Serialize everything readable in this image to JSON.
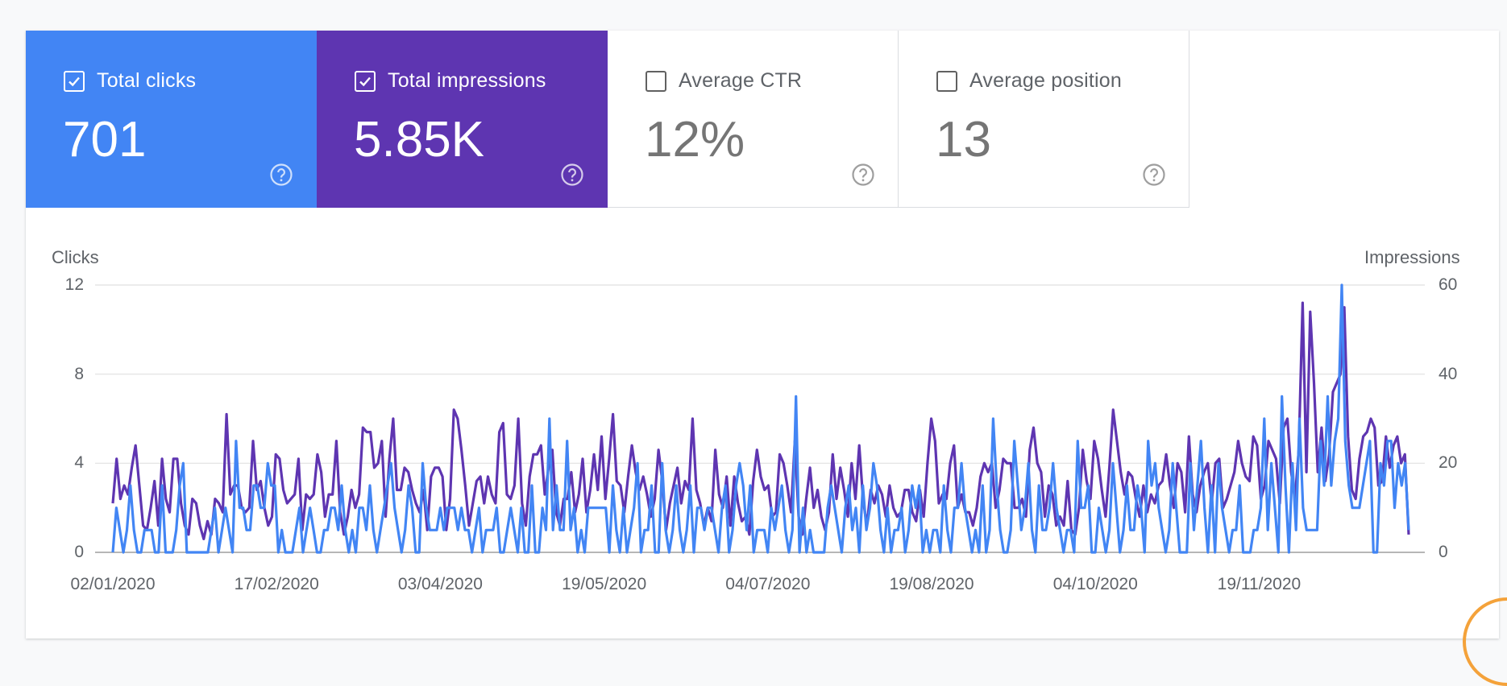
{
  "metrics": [
    {
      "label": "Total clicks",
      "value": "701",
      "checked": true
    },
    {
      "label": "Total impressions",
      "value": "5.85K",
      "checked": true
    },
    {
      "label": "Average CTR",
      "value": "12%",
      "checked": false
    },
    {
      "label": "Average position",
      "value": "13",
      "checked": false
    }
  ],
  "colors": {
    "clicks": "#4285f4",
    "impressions": "#5e35b1",
    "grid": "#e0e0e0"
  },
  "chart_data": {
    "type": "line",
    "ylabel_left": "Clicks",
    "ylabel_right": "Impressions",
    "left_ticks": [
      "0",
      "4",
      "8",
      "12"
    ],
    "right_ticks": [
      "0",
      "20",
      "40",
      "60"
    ],
    "ylim_left": [
      0,
      12
    ],
    "ylim_right": [
      0,
      60
    ],
    "grid": true,
    "x_tick_labels": [
      "02/01/2020",
      "17/02/2020",
      "03/04/2020",
      "19/05/2020",
      "04/07/2020",
      "19/08/2020",
      "04/10/2020",
      "19/11/2020"
    ],
    "x_start": "2020-01-02",
    "x_end": "2020-12-31",
    "series": [
      {
        "name": "Impressions",
        "axis": "right",
        "values": [
          11,
          21,
          12,
          15,
          13,
          19,
          24,
          15,
          6,
          5,
          10,
          16,
          6,
          21,
          12,
          9,
          21,
          21,
          11,
          6,
          4,
          12,
          11,
          6,
          3,
          7,
          4,
          12,
          11,
          9,
          31,
          13,
          15,
          15,
          10,
          9,
          10,
          25,
          14,
          16,
          10,
          6,
          8,
          22,
          21,
          14,
          11,
          12,
          13,
          21,
          5,
          13,
          12,
          13,
          22,
          18,
          8,
          13,
          13,
          25,
          9,
          4,
          8,
          14,
          10,
          13,
          28,
          27,
          27,
          19,
          20,
          25,
          8,
          21,
          30,
          14,
          14,
          19,
          18,
          14,
          11,
          9,
          14,
          5,
          17,
          19,
          19,
          17,
          5,
          12,
          32,
          30,
          23,
          15,
          6,
          11,
          16,
          17,
          11,
          17,
          13,
          11,
          27,
          29,
          13,
          12,
          15,
          30,
          11,
          6,
          17,
          22,
          22,
          24,
          13,
          19,
          23,
          9,
          6,
          12,
          12,
          18,
          9,
          13,
          21,
          9,
          14,
          22,
          14,
          26,
          12,
          21,
          31,
          16,
          15,
          9,
          17,
          24,
          18,
          14,
          17,
          13,
          8,
          12,
          23,
          16,
          5,
          11,
          15,
          19,
          11,
          16,
          14,
          30,
          14,
          11,
          6,
          10,
          7,
          23,
          13,
          10,
          17,
          6,
          17,
          11,
          7,
          8,
          4,
          16,
          23,
          17,
          14,
          15,
          8,
          9,
          22,
          20,
          15,
          9,
          25,
          8,
          4,
          12,
          19,
          10,
          14,
          8,
          5,
          9,
          22,
          12,
          19,
          14,
          8,
          20,
          12,
          24,
          12,
          6,
          14,
          11,
          15,
          13,
          8,
          15,
          10,
          8,
          9,
          14,
          14,
          9,
          7,
          14,
          8,
          20,
          30,
          25,
          11,
          13,
          12,
          20,
          24,
          10,
          13,
          9,
          9,
          6,
          10,
          17,
          20,
          18,
          20,
          10,
          14,
          21,
          20,
          20,
          10,
          10,
          12,
          8,
          23,
          28,
          20,
          18,
          8,
          15,
          13,
          6,
          8,
          6,
          16,
          5,
          4,
          10,
          23,
          16,
          12,
          25,
          21,
          14,
          8,
          19,
          32,
          25,
          18,
          13,
          18,
          17,
          12,
          8,
          15,
          9,
          13,
          11,
          15,
          16,
          22,
          15,
          10,
          20,
          18,
          9,
          26,
          13,
          9,
          15,
          18,
          20,
          11,
          20,
          21,
          10,
          12,
          15,
          18,
          25,
          20,
          17,
          16,
          26,
          24,
          12,
          15,
          25,
          23,
          21,
          11,
          28,
          30,
          18,
          12,
          23,
          56,
          18,
          54,
          38,
          18,
          28,
          16,
          22,
          36,
          38,
          40,
          55,
          26,
          14,
          12,
          21,
          26,
          27,
          30,
          28,
          15,
          16,
          26,
          19,
          24,
          26,
          20,
          22,
          4
        ]
      },
      {
        "name": "Clicks",
        "axis": "left",
        "values": [
          0,
          2,
          1,
          0,
          1,
          3,
          1,
          0,
          0,
          1,
          1,
          1,
          0,
          0,
          3,
          0,
          0,
          0,
          1,
          3,
          4,
          0,
          0,
          0,
          0,
          0,
          0,
          0,
          1,
          2,
          0,
          1,
          2,
          1,
          0,
          5,
          2,
          2,
          1,
          1,
          3,
          3,
          2,
          2,
          4,
          3,
          3,
          0,
          1,
          0,
          0,
          0,
          1,
          2,
          0,
          1,
          2,
          1,
          0,
          0,
          1,
          1,
          2,
          2,
          1,
          3,
          1,
          0,
          1,
          0,
          2,
          2,
          1,
          3,
          1,
          0,
          1,
          2,
          3,
          4,
          2,
          1,
          0,
          1,
          3,
          2,
          0,
          0,
          4,
          2,
          1,
          1,
          1,
          2,
          1,
          2,
          2,
          2,
          1,
          2,
          1,
          1,
          0,
          1,
          2,
          0,
          1,
          1,
          1,
          2,
          0,
          0,
          1,
          2,
          1,
          0,
          2,
          0,
          0,
          3,
          0,
          0,
          2,
          1,
          6,
          1,
          3,
          1,
          1,
          5,
          1,
          2,
          0,
          1,
          0,
          2,
          2,
          2,
          2,
          2,
          2,
          0,
          3,
          1,
          0,
          2,
          0,
          1,
          2,
          4,
          0,
          1,
          1,
          3,
          0,
          0,
          4,
          1,
          0,
          1,
          3,
          1,
          0,
          1,
          3,
          0,
          2,
          2,
          1,
          2,
          2,
          1,
          0,
          2,
          3,
          0,
          1,
          3,
          4,
          3,
          1,
          3,
          0,
          1,
          1,
          1,
          0,
          2,
          1,
          2,
          3,
          1,
          0,
          1,
          7,
          0,
          2,
          0,
          1,
          0,
          0,
          0,
          0,
          2,
          3,
          2,
          1,
          0,
          2,
          3,
          1,
          2,
          0,
          3,
          1,
          2,
          4,
          3,
          1,
          0,
          2,
          0,
          1,
          1,
          2,
          0,
          1,
          3,
          2,
          3,
          0,
          1,
          0,
          1,
          1,
          0,
          3,
          1,
          0,
          2,
          2,
          4,
          2,
          1,
          0,
          1,
          0,
          3,
          0,
          1,
          6,
          3,
          1,
          0,
          0,
          1,
          5,
          3,
          1,
          2,
          4,
          1,
          0,
          3,
          1,
          1,
          2,
          4,
          2,
          1,
          0,
          1,
          1,
          0,
          5,
          2,
          2,
          3,
          0,
          0,
          2,
          1,
          0,
          1,
          4,
          2,
          0,
          1,
          3,
          1,
          1,
          3,
          2,
          0,
          5,
          3,
          4,
          2,
          1,
          0,
          1,
          4,
          2,
          0,
          0,
          0,
          4,
          1,
          3,
          5,
          2,
          0,
          3,
          0,
          4,
          2,
          1,
          0,
          1,
          1,
          3,
          0,
          0,
          0,
          1,
          1,
          2,
          6,
          1,
          4,
          2,
          0,
          7,
          3,
          0,
          4,
          1,
          6,
          2,
          1,
          1,
          1,
          1,
          5,
          3,
          7,
          3,
          5,
          6,
          12,
          5,
          3,
          2,
          2,
          2,
          3,
          4,
          5,
          0,
          0,
          4,
          3,
          5,
          5,
          2,
          4,
          3,
          4,
          1
        ]
      }
    ]
  }
}
